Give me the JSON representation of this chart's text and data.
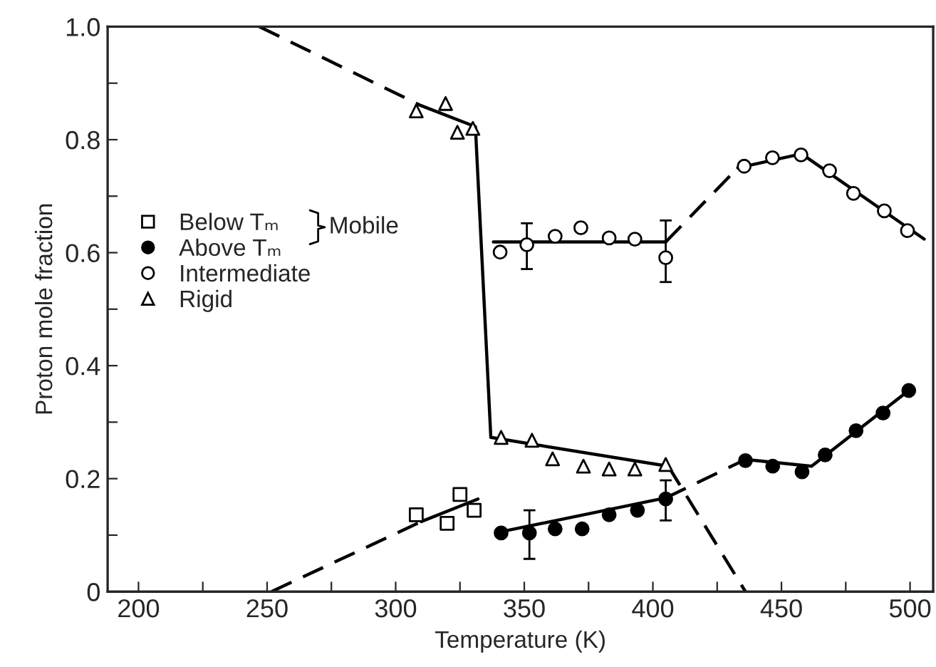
{
  "chart_data": {
    "type": "scatter",
    "xlabel": "Temperature (K)",
    "ylabel": "Proton mole fraction",
    "xlim": [
      188,
      509
    ],
    "ylim": [
      0,
      1.0
    ],
    "xticks": [
      200,
      {
        "value": 225,
        "label": null
      },
      250,
      {
        "value": 275,
        "label": null
      },
      300,
      {
        "value": 325,
        "label": null
      },
      350,
      {
        "value": 375,
        "label": null
      },
      400,
      {
        "value": 425,
        "label": null
      },
      450,
      {
        "value": 475,
        "label": null
      },
      500
    ],
    "yticks": [
      0,
      {
        "value": 0.1,
        "label": null
      },
      0.2,
      {
        "value": 0.3,
        "label": null
      },
      0.4,
      {
        "value": 0.5,
        "label": null
      },
      0.6,
      {
        "value": 0.7,
        "label": null
      },
      0.8,
      {
        "value": 0.9,
        "label": null
      },
      {
        "value": 1.0,
        "label": "1.0"
      }
    ],
    "grid": false,
    "legend": "left",
    "annotations": [
      "Mobile"
    ],
    "series": [
      {
        "type": "line",
        "color": "#000000",
        "line_style": "dashed",
        "x": [
          247,
          310
        ],
        "values": [
          1.0,
          0.86
        ]
      },
      {
        "type": "line",
        "color": "#000000",
        "line_style": "solid",
        "x": [
          310,
          331,
          337,
          406
        ],
        "values": [
          0.86,
          0.823,
          0.273,
          0.222
        ]
      },
      {
        "type": "line",
        "color": "#000000",
        "line_style": "dashed",
        "x": [
          406,
          436
        ],
        "values": [
          0.222,
          0.0
        ]
      },
      {
        "type": "line",
        "color": "#000000",
        "line_style": "solid",
        "x": [
          338,
          405
        ],
        "values": [
          0.619,
          0.619
        ]
      },
      {
        "type": "line",
        "color": "#000000",
        "line_style": "dashed",
        "x": [
          405,
          433
        ],
        "values": [
          0.619,
          0.75
        ]
      },
      {
        "type": "line",
        "color": "#000000",
        "line_style": "solid",
        "x": [
          433,
          457.8,
          505.5
        ],
        "values": [
          0.75,
          0.775,
          0.624
        ]
      },
      {
        "type": "line",
        "color": "#000000",
        "line_style": "dashed",
        "x": [
          251.7,
          310
        ],
        "values": [
          0.0,
          0.124
        ]
      },
      {
        "type": "line",
        "color": "#000000",
        "line_style": "solid",
        "x": [
          310,
          332
        ],
        "values": [
          0.124,
          0.164
        ]
      },
      {
        "type": "line",
        "color": "#000000",
        "line_style": "solid",
        "x": [
          341,
          405
        ],
        "values": [
          0.106,
          0.166
        ]
      },
      {
        "type": "line",
        "color": "#000000",
        "line_style": "dashed",
        "x": [
          405,
          436
        ],
        "values": [
          0.166,
          0.234
        ]
      },
      {
        "type": "line",
        "color": "#000000",
        "line_style": "solid",
        "x": [
          436,
          461.7,
          499.5
        ],
        "values": [
          0.234,
          0.222,
          0.356
        ]
      },
      {
        "name": "Below Tₘ",
        "marker": "square",
        "color": "#ffffff",
        "x": [
          308,
          320,
          325,
          330.5
        ],
        "values": [
          0.136,
          0.121,
          0.172,
          0.144
        ]
      },
      {
        "name": "Above Tₘ",
        "marker": "circle",
        "color": "#000000",
        "x": [
          341,
          352,
          362,
          372.5,
          383,
          394,
          405,
          436,
          446.6,
          458,
          467,
          479,
          489.5,
          499.5
        ],
        "values": [
          0.104,
          0.104,
          0.111,
          0.111,
          0.136,
          0.144,
          0.164,
          0.232,
          0.222,
          0.212,
          0.242,
          0.285,
          0.316,
          0.356
        ],
        "errors": [
          null,
          [
            0.058,
            0.144
          ],
          null,
          null,
          null,
          null,
          [
            0.126,
            0.197
          ],
          null,
          null,
          null,
          null,
          null,
          null,
          null
        ]
      },
      {
        "name": "Intermediate",
        "marker": "circle",
        "color": "#ffffff",
        "x": [
          340.6,
          351,
          362,
          372,
          383,
          393,
          405,
          435.5,
          446.5,
          457.6,
          468.7,
          478,
          490,
          499
        ],
        "values": [
          0.601,
          0.614,
          0.629,
          0.644,
          0.626,
          0.624,
          0.591,
          0.753,
          0.768,
          0.773,
          0.745,
          0.705,
          0.674,
          0.639
        ],
        "errors": [
          null,
          [
            0.571,
            0.652
          ],
          null,
          null,
          null,
          null,
          [
            0.548,
            0.657
          ],
          null,
          null,
          null,
          null,
          null,
          null,
          null
        ]
      },
      {
        "name": "Rigid",
        "marker": "triangle",
        "color": "#ffffff",
        "x": [
          308,
          319.4,
          324,
          330,
          341,
          353,
          361,
          373,
          383,
          393,
          405
        ],
        "values": [
          0.851,
          0.864,
          0.813,
          0.82,
          0.273,
          0.268,
          0.235,
          0.222,
          0.217,
          0.217,
          0.225
        ]
      }
    ]
  }
}
